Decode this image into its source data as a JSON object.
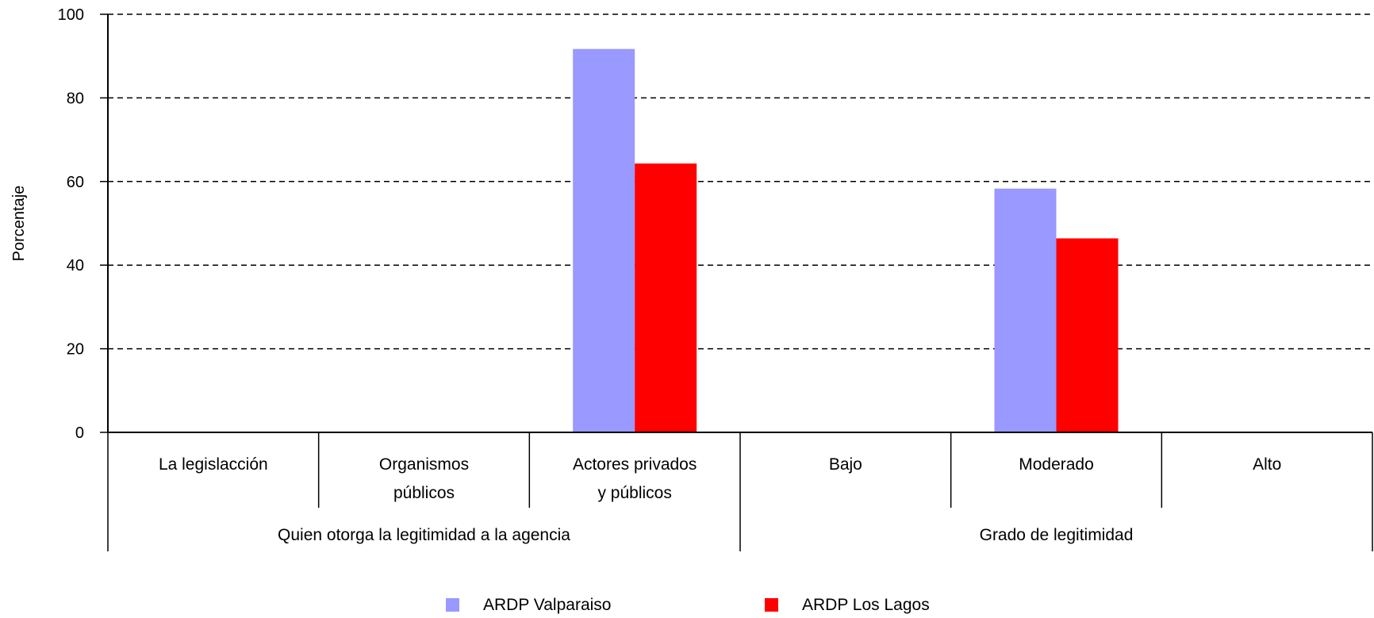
{
  "chart_data": {
    "type": "bar",
    "title": "",
    "xlabel": "",
    "ylabel": "Porcentaje",
    "ylim": [
      0,
      100
    ],
    "yticks": [
      0,
      20,
      40,
      60,
      80,
      100
    ],
    "grid": true,
    "legend_position": "bottom",
    "categories": [
      [
        "La legislacción"
      ],
      [
        "Organismos",
        "públicos"
      ],
      [
        "Actores privados",
        "y públicos"
      ],
      [
        "Bajo"
      ],
      [
        "Moderado"
      ],
      [
        "Alto"
      ]
    ],
    "groups": [
      {
        "label": "Quien otorga la legitimidad a la agencia",
        "span": 3
      },
      {
        "label": "Grado de legitimidad",
        "span": 3
      }
    ],
    "series": [
      {
        "name": "ARDP Valparaiso",
        "color": "#9999ff",
        "values": [
          0,
          0,
          91.7,
          0,
          58.3,
          0
        ]
      },
      {
        "name": "ARDP Los Lagos",
        "color": "#ff0000",
        "values": [
          0,
          0,
          64.3,
          0,
          46.4,
          0
        ]
      }
    ]
  }
}
